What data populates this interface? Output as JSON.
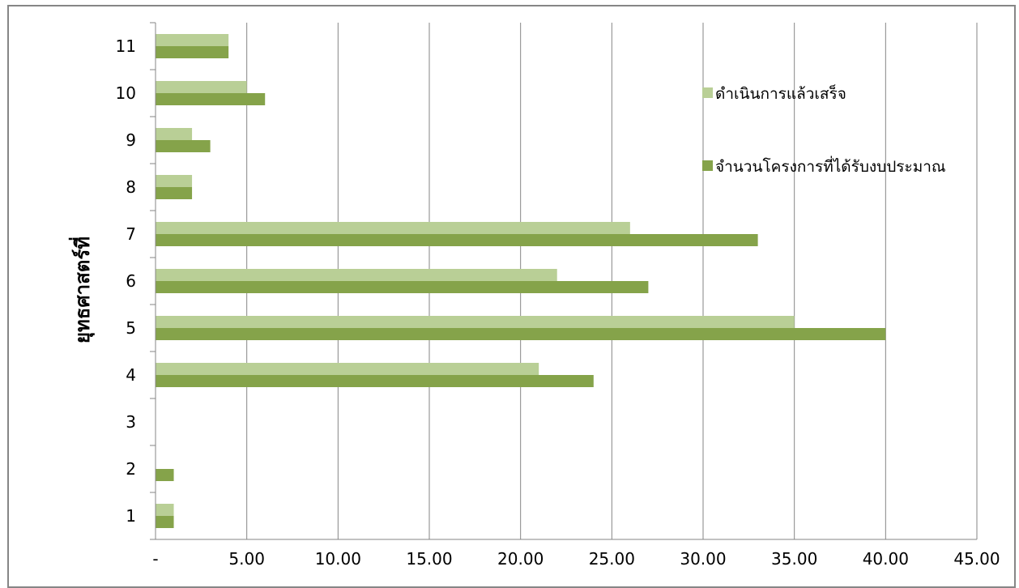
{
  "chart_data": {
    "type": "bar",
    "orientation": "horizontal",
    "categories": [
      "1",
      "2",
      "3",
      "4",
      "5",
      "6",
      "7",
      "8",
      "9",
      "10",
      "11"
    ],
    "series": [
      {
        "name": "ดำเนินการแล้วเสร็จ",
        "color": "#b9cf96",
        "values": [
          1,
          0,
          0,
          21,
          35,
          22,
          26,
          2,
          2,
          5,
          4
        ]
      },
      {
        "name": "จำนวนโครงการที่ได้รับงบประมาณ",
        "color": "#85a34a",
        "values": [
          1,
          1,
          0,
          24,
          40,
          27,
          33,
          2,
          3,
          6,
          4
        ]
      }
    ],
    "ylabel": "ยุทธศาสตร์ที่",
    "xlabel": "",
    "xlim": [
      0,
      45
    ],
    "x_tick_labels": [
      "-",
      "5.00",
      "10.00",
      "15.00",
      "20.00",
      "25.00",
      "30.00",
      "35.00",
      "40.00",
      "45.00"
    ],
    "grid": "vertical",
    "legend_position": "right"
  }
}
